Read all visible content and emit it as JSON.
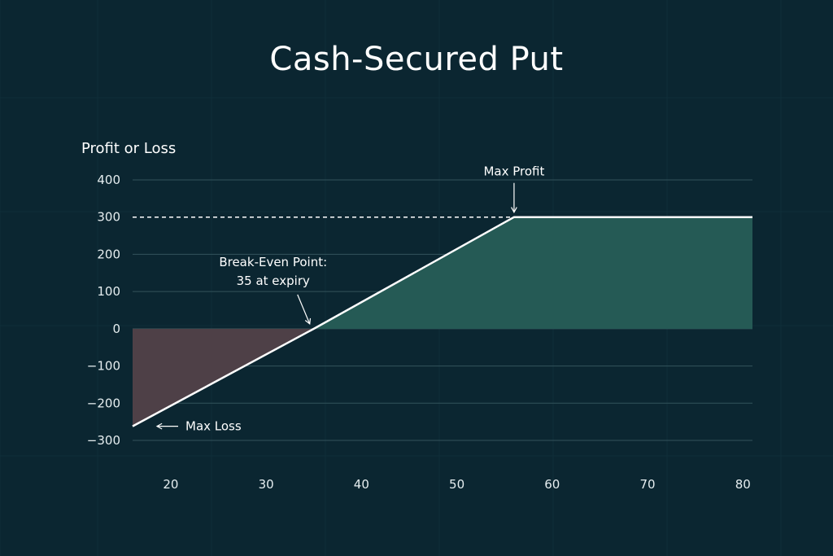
{
  "title": "Cash-Secured Put",
  "colors": {
    "background": "#0b2631",
    "profit_fill": "#255a55",
    "loss_fill": "#4e4047",
    "line": "#ffffff",
    "grid": "#33535b"
  },
  "chart_data": {
    "type": "line",
    "ylabel": "Profit or Loss",
    "xlabel": "",
    "xlim": [
      16,
      81
    ],
    "ylim": [
      -300,
      400
    ],
    "x_ticks": [
      20,
      30,
      40,
      50,
      60,
      70,
      80
    ],
    "y_ticks": [
      400,
      300,
      200,
      100,
      0,
      -100,
      -200,
      -300
    ],
    "y_tick_labels": [
      "400",
      "300",
      "200",
      "100",
      "0",
      "−100",
      "−200",
      "−300"
    ],
    "grid": true,
    "series": [
      {
        "x": [
          16,
          35,
          56,
          81
        ],
        "y": [
          -262,
          0,
          300,
          300
        ]
      }
    ],
    "reference_line": {
      "y": 300,
      "style": "dashed"
    },
    "annotations": [
      {
        "id": "max-profit",
        "line1": "Max Profit",
        "line2": "",
        "x": 56,
        "y": 300
      },
      {
        "id": "break-even",
        "line1": "Break-Even Point:",
        "line2": "35 at expiry",
        "x": 35,
        "y": 0
      },
      {
        "id": "max-loss",
        "line1": "Max Loss",
        "line2": "",
        "x": 16,
        "y": -262
      }
    ]
  }
}
